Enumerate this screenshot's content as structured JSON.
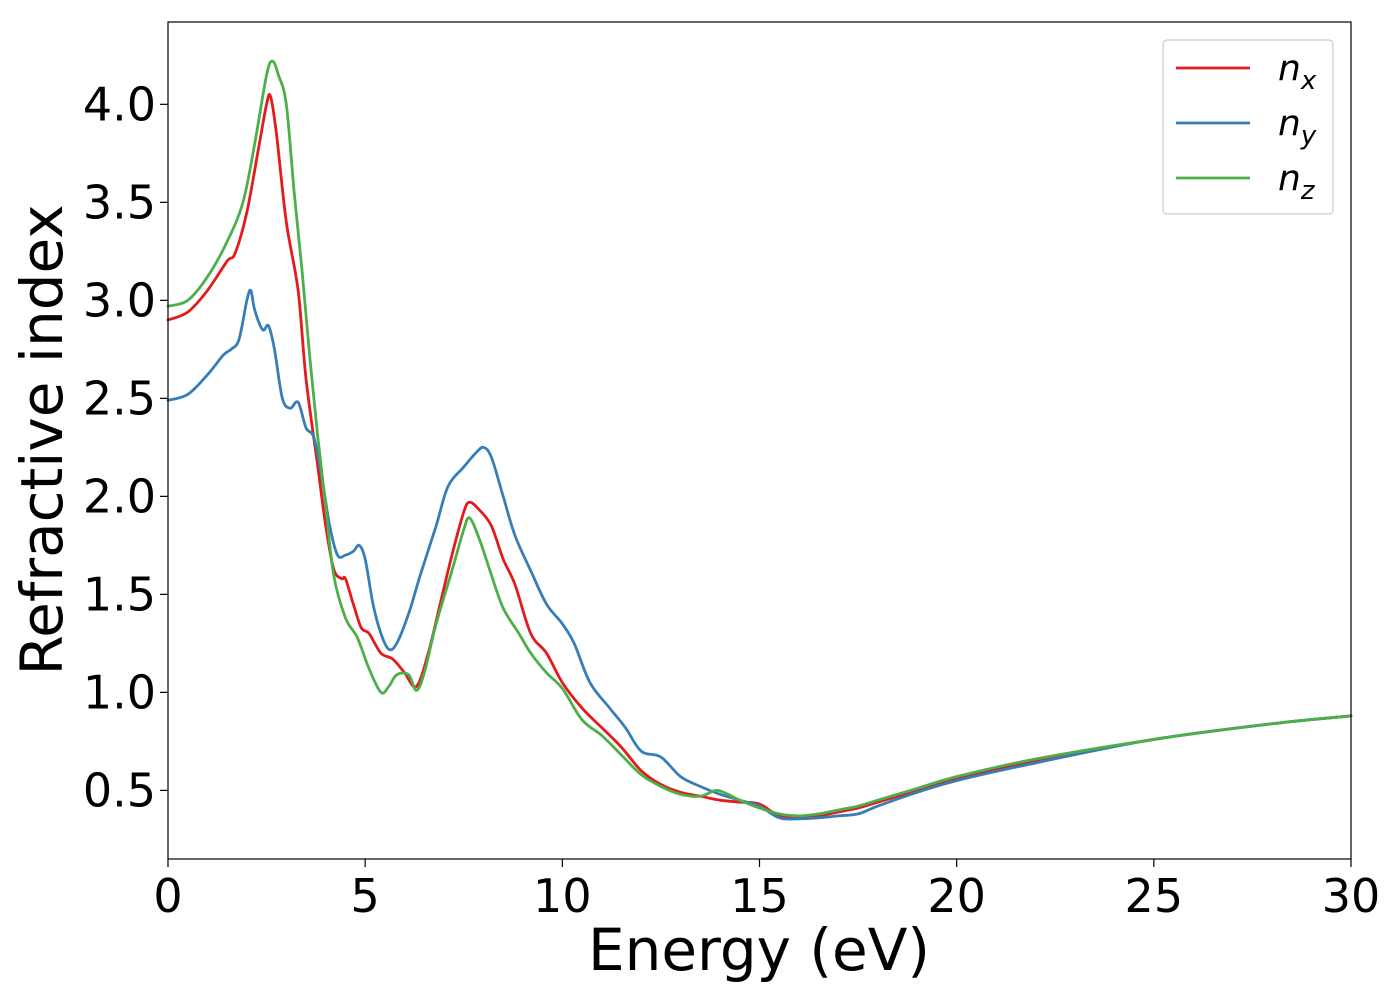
{
  "chart_data": {
    "type": "line",
    "xlabel": "Energy (eV)",
    "ylabel": "Refractive index",
    "xlim": [
      0,
      30
    ],
    "ylim": [
      0.15,
      4.42
    ],
    "xticks": [
      "0",
      "5",
      "10",
      "15",
      "20",
      "25",
      "30"
    ],
    "yticks": [
      "0.5",
      "1.0",
      "1.5",
      "2.0",
      "2.5",
      "3.0",
      "3.5",
      "4.0"
    ],
    "grid": false,
    "legend_position": "top-right",
    "series": [
      {
        "name": "n_x",
        "legend_base": "n",
        "legend_sub": "x",
        "color": "#e41a1c",
        "points": [
          [
            0,
            2.9
          ],
          [
            0.5,
            2.94
          ],
          [
            1.0,
            3.05
          ],
          [
            1.5,
            3.2
          ],
          [
            1.7,
            3.24
          ],
          [
            2.0,
            3.45
          ],
          [
            2.3,
            3.78
          ],
          [
            2.5,
            4.0
          ],
          [
            2.6,
            4.04
          ],
          [
            2.75,
            3.85
          ],
          [
            3.0,
            3.4
          ],
          [
            3.3,
            3.05
          ],
          [
            3.5,
            2.6
          ],
          [
            3.8,
            2.15
          ],
          [
            4.0,
            1.85
          ],
          [
            4.2,
            1.63
          ],
          [
            4.4,
            1.58
          ],
          [
            4.5,
            1.58
          ],
          [
            4.7,
            1.45
          ],
          [
            4.9,
            1.33
          ],
          [
            5.1,
            1.3
          ],
          [
            5.4,
            1.2
          ],
          [
            5.7,
            1.17
          ],
          [
            6.0,
            1.1
          ],
          [
            6.3,
            1.03
          ],
          [
            6.6,
            1.2
          ],
          [
            6.9,
            1.45
          ],
          [
            7.2,
            1.7
          ],
          [
            7.5,
            1.92
          ],
          [
            7.65,
            1.97
          ],
          [
            7.9,
            1.93
          ],
          [
            8.2,
            1.85
          ],
          [
            8.5,
            1.68
          ],
          [
            8.8,
            1.55
          ],
          [
            9.2,
            1.3
          ],
          [
            9.6,
            1.2
          ],
          [
            10.0,
            1.05
          ],
          [
            10.5,
            0.92
          ],
          [
            11.0,
            0.82
          ],
          [
            11.5,
            0.72
          ],
          [
            12.0,
            0.6
          ],
          [
            12.5,
            0.53
          ],
          [
            13.0,
            0.49
          ],
          [
            13.5,
            0.47
          ],
          [
            14.0,
            0.45
          ],
          [
            14.5,
            0.44
          ],
          [
            15.0,
            0.43
          ],
          [
            15.5,
            0.37
          ],
          [
            16.0,
            0.36
          ],
          [
            16.5,
            0.37
          ],
          [
            17.0,
            0.39
          ],
          [
            17.5,
            0.41
          ],
          [
            18.0,
            0.44
          ],
          [
            19.0,
            0.5
          ],
          [
            20.0,
            0.56
          ],
          [
            22.0,
            0.65
          ],
          [
            25.0,
            0.76
          ],
          [
            28.0,
            0.84
          ],
          [
            30.0,
            0.88
          ]
        ]
      },
      {
        "name": "n_y",
        "legend_base": "n",
        "legend_sub": "y",
        "color": "#377eb8",
        "points": [
          [
            0,
            2.49
          ],
          [
            0.5,
            2.52
          ],
          [
            1.0,
            2.62
          ],
          [
            1.4,
            2.72
          ],
          [
            1.6,
            2.75
          ],
          [
            1.8,
            2.8
          ],
          [
            2.0,
            3.0
          ],
          [
            2.1,
            3.05
          ],
          [
            2.2,
            2.95
          ],
          [
            2.4,
            2.85
          ],
          [
            2.55,
            2.87
          ],
          [
            2.7,
            2.75
          ],
          [
            2.9,
            2.5
          ],
          [
            3.1,
            2.45
          ],
          [
            3.3,
            2.48
          ],
          [
            3.5,
            2.35
          ],
          [
            3.7,
            2.3
          ],
          [
            3.9,
            2.1
          ],
          [
            4.1,
            1.85
          ],
          [
            4.3,
            1.7
          ],
          [
            4.5,
            1.7
          ],
          [
            4.7,
            1.72
          ],
          [
            4.85,
            1.75
          ],
          [
            5.0,
            1.68
          ],
          [
            5.2,
            1.45
          ],
          [
            5.4,
            1.3
          ],
          [
            5.6,
            1.22
          ],
          [
            5.8,
            1.25
          ],
          [
            6.1,
            1.4
          ],
          [
            6.4,
            1.6
          ],
          [
            6.8,
            1.85
          ],
          [
            7.1,
            2.05
          ],
          [
            7.5,
            2.15
          ],
          [
            7.8,
            2.22
          ],
          [
            8.0,
            2.25
          ],
          [
            8.2,
            2.2
          ],
          [
            8.5,
            2.0
          ],
          [
            8.8,
            1.8
          ],
          [
            9.2,
            1.62
          ],
          [
            9.6,
            1.45
          ],
          [
            10.0,
            1.35
          ],
          [
            10.3,
            1.25
          ],
          [
            10.7,
            1.05
          ],
          [
            11.2,
            0.92
          ],
          [
            11.6,
            0.82
          ],
          [
            12.0,
            0.7
          ],
          [
            12.5,
            0.67
          ],
          [
            13.0,
            0.57
          ],
          [
            13.5,
            0.52
          ],
          [
            14.0,
            0.48
          ],
          [
            14.5,
            0.45
          ],
          [
            15.0,
            0.42
          ],
          [
            15.5,
            0.36
          ],
          [
            16.0,
            0.355
          ],
          [
            16.5,
            0.36
          ],
          [
            17.0,
            0.37
          ],
          [
            17.5,
            0.38
          ],
          [
            18.0,
            0.42
          ],
          [
            19.0,
            0.49
          ],
          [
            20.0,
            0.55
          ],
          [
            22.0,
            0.64
          ],
          [
            25.0,
            0.76
          ],
          [
            28.0,
            0.84
          ],
          [
            30.0,
            0.88
          ]
        ]
      },
      {
        "name": "n_z",
        "legend_base": "n",
        "legend_sub": "z",
        "color": "#4daf4a",
        "points": [
          [
            0,
            2.97
          ],
          [
            0.5,
            3.0
          ],
          [
            1.0,
            3.12
          ],
          [
            1.5,
            3.3
          ],
          [
            1.9,
            3.5
          ],
          [
            2.2,
            3.8
          ],
          [
            2.5,
            4.15
          ],
          [
            2.65,
            4.22
          ],
          [
            2.8,
            4.15
          ],
          [
            3.0,
            4.0
          ],
          [
            3.2,
            3.55
          ],
          [
            3.4,
            3.15
          ],
          [
            3.6,
            2.7
          ],
          [
            3.8,
            2.3
          ],
          [
            4.0,
            1.95
          ],
          [
            4.2,
            1.6
          ],
          [
            4.5,
            1.38
          ],
          [
            4.8,
            1.28
          ],
          [
            5.1,
            1.12
          ],
          [
            5.4,
            1.0
          ],
          [
            5.6,
            1.03
          ],
          [
            5.8,
            1.09
          ],
          [
            6.1,
            1.09
          ],
          [
            6.3,
            1.01
          ],
          [
            6.5,
            1.1
          ],
          [
            6.8,
            1.35
          ],
          [
            7.2,
            1.62
          ],
          [
            7.5,
            1.83
          ],
          [
            7.65,
            1.89
          ],
          [
            7.9,
            1.78
          ],
          [
            8.2,
            1.6
          ],
          [
            8.5,
            1.43
          ],
          [
            8.9,
            1.3
          ],
          [
            9.2,
            1.2
          ],
          [
            9.6,
            1.1
          ],
          [
            10.0,
            1.02
          ],
          [
            10.5,
            0.86
          ],
          [
            11.0,
            0.78
          ],
          [
            11.5,
            0.68
          ],
          [
            12.0,
            0.58
          ],
          [
            12.5,
            0.52
          ],
          [
            13.0,
            0.48
          ],
          [
            13.5,
            0.47
          ],
          [
            13.9,
            0.5
          ],
          [
            14.2,
            0.48
          ],
          [
            14.5,
            0.45
          ],
          [
            15.0,
            0.41
          ],
          [
            15.5,
            0.38
          ],
          [
            16.0,
            0.37
          ],
          [
            16.5,
            0.38
          ],
          [
            17.0,
            0.4
          ],
          [
            17.5,
            0.42
          ],
          [
            18.0,
            0.45
          ],
          [
            19.0,
            0.51
          ],
          [
            20.0,
            0.57
          ],
          [
            22.0,
            0.66
          ],
          [
            25.0,
            0.76
          ],
          [
            28.0,
            0.84
          ],
          [
            30.0,
            0.88
          ]
        ]
      }
    ]
  }
}
